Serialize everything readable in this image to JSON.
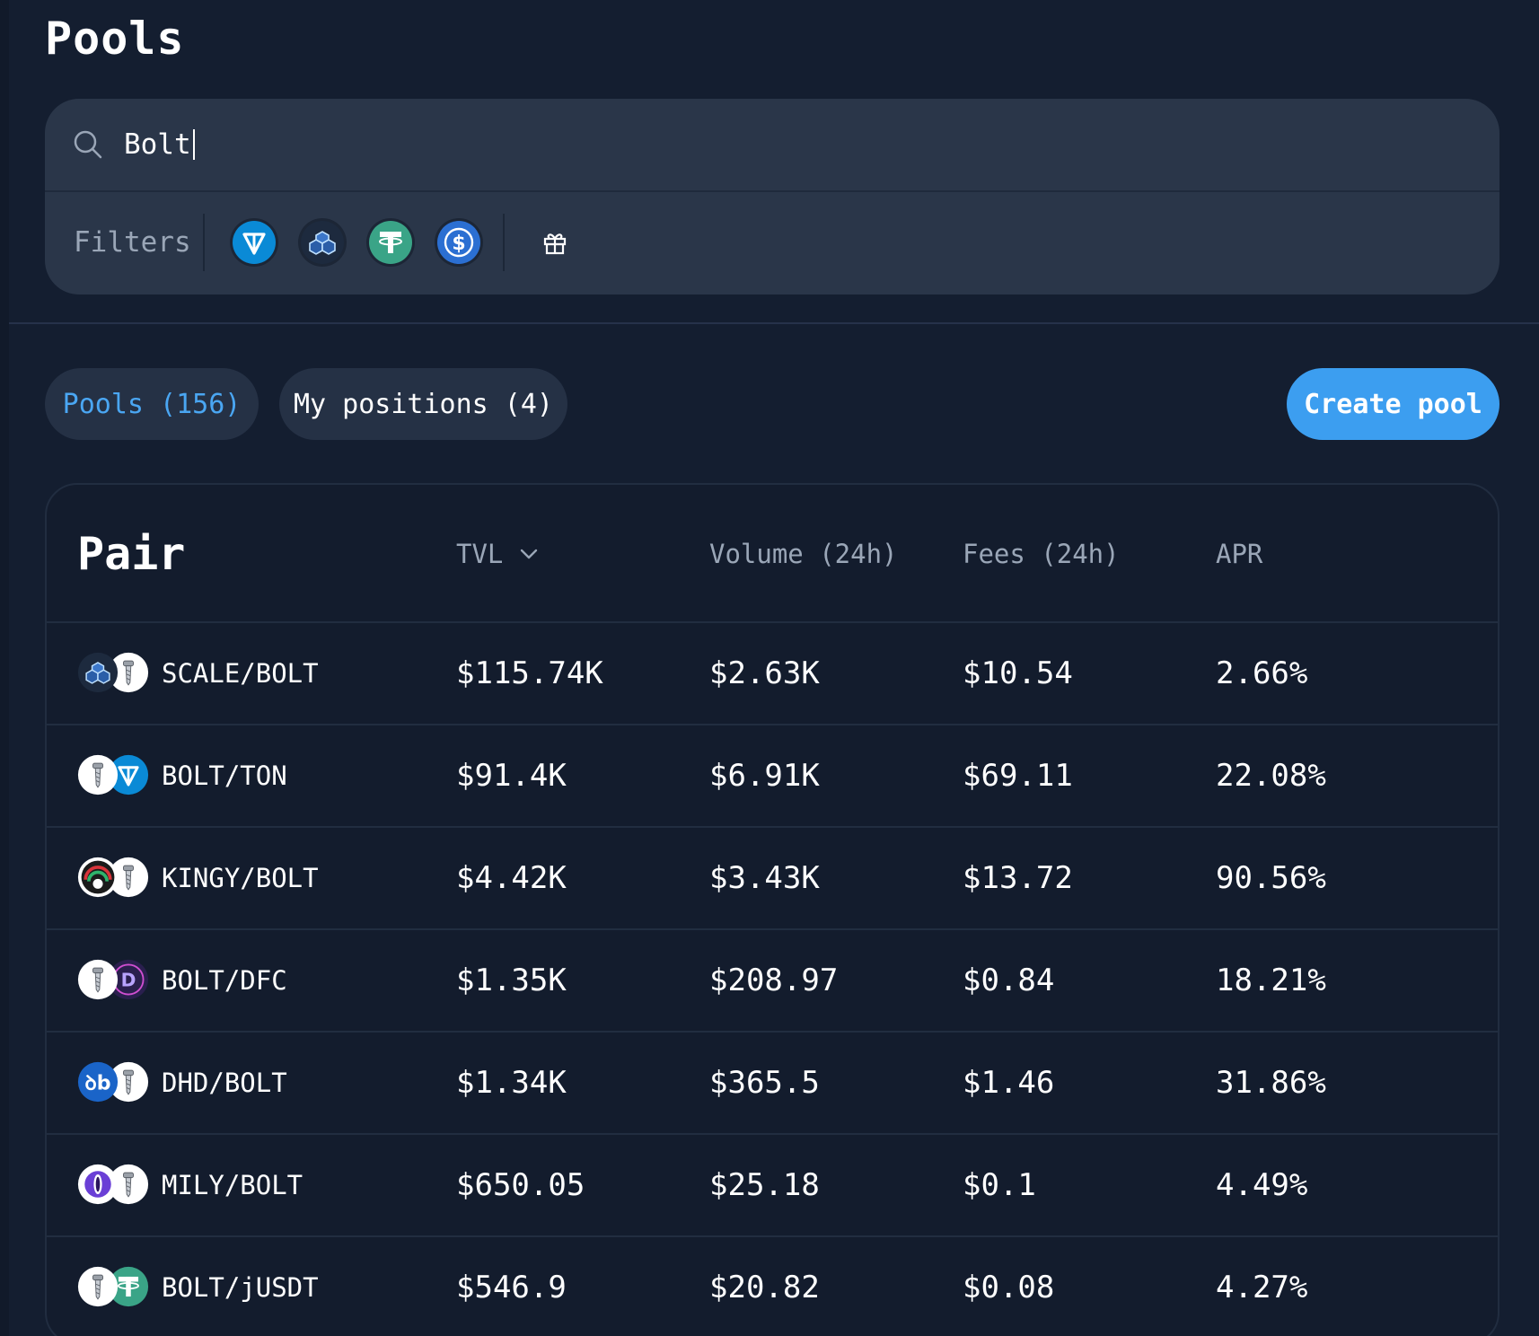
{
  "page_title": "Pools",
  "search": {
    "value": "Bolt"
  },
  "filters": {
    "label": "Filters",
    "tokens": [
      "ton-icon",
      "scale-icon",
      "usdt-icon",
      "usdc-icon"
    ],
    "extra": "gift-icon"
  },
  "tabs": [
    {
      "label": "Pools (156)",
      "active": true
    },
    {
      "label": "My positions (4)",
      "active": false
    }
  ],
  "create_pool_label": "Create pool",
  "colors": {
    "accent": "#3c9ef0",
    "background": "#141e30",
    "card": "#2a3649",
    "row_border": "#212d40"
  },
  "table": {
    "headers": {
      "pair": "Pair",
      "tvl": "TVL",
      "volume": "Volume (24h)",
      "fees": "Fees (24h)",
      "apr": "APR"
    },
    "sort_icon": "chevron-down-icon",
    "rows": [
      {
        "pair": "SCALE/BOLT",
        "icons": [
          "scale-icon",
          "bolt-icon"
        ],
        "tvl": "$115.74K",
        "volume": "$2.63K",
        "fees": "$10.54",
        "apr": "2.66%"
      },
      {
        "pair": "BOLT/TON",
        "icons": [
          "bolt-icon",
          "ton-icon"
        ],
        "tvl": "$91.4K",
        "volume": "$6.91K",
        "fees": "$69.11",
        "apr": "22.08%"
      },
      {
        "pair": "KINGY/BOLT",
        "icons": [
          "kingy-icon",
          "bolt-icon"
        ],
        "tvl": "$4.42K",
        "volume": "$3.43K",
        "fees": "$13.72",
        "apr": "90.56%"
      },
      {
        "pair": "BOLT/DFC",
        "icons": [
          "bolt-icon",
          "dfc-icon"
        ],
        "tvl": "$1.35K",
        "volume": "$208.97",
        "fees": "$0.84",
        "apr": "18.21%"
      },
      {
        "pair": "DHD/BOLT",
        "icons": [
          "dhd-icon",
          "bolt-icon"
        ],
        "tvl": "$1.34K",
        "volume": "$365.5",
        "fees": "$1.46",
        "apr": "31.86%"
      },
      {
        "pair": "MILY/BOLT",
        "icons": [
          "mily-icon",
          "bolt-icon"
        ],
        "tvl": "$650.05",
        "volume": "$25.18",
        "fees": "$0.1",
        "apr": "4.49%"
      },
      {
        "pair": "BOLT/jUSDT",
        "icons": [
          "bolt-icon",
          "jusdt-icon"
        ],
        "tvl": "$546.9",
        "volume": "$20.82",
        "fees": "$0.08",
        "apr": "4.27%"
      }
    ]
  }
}
